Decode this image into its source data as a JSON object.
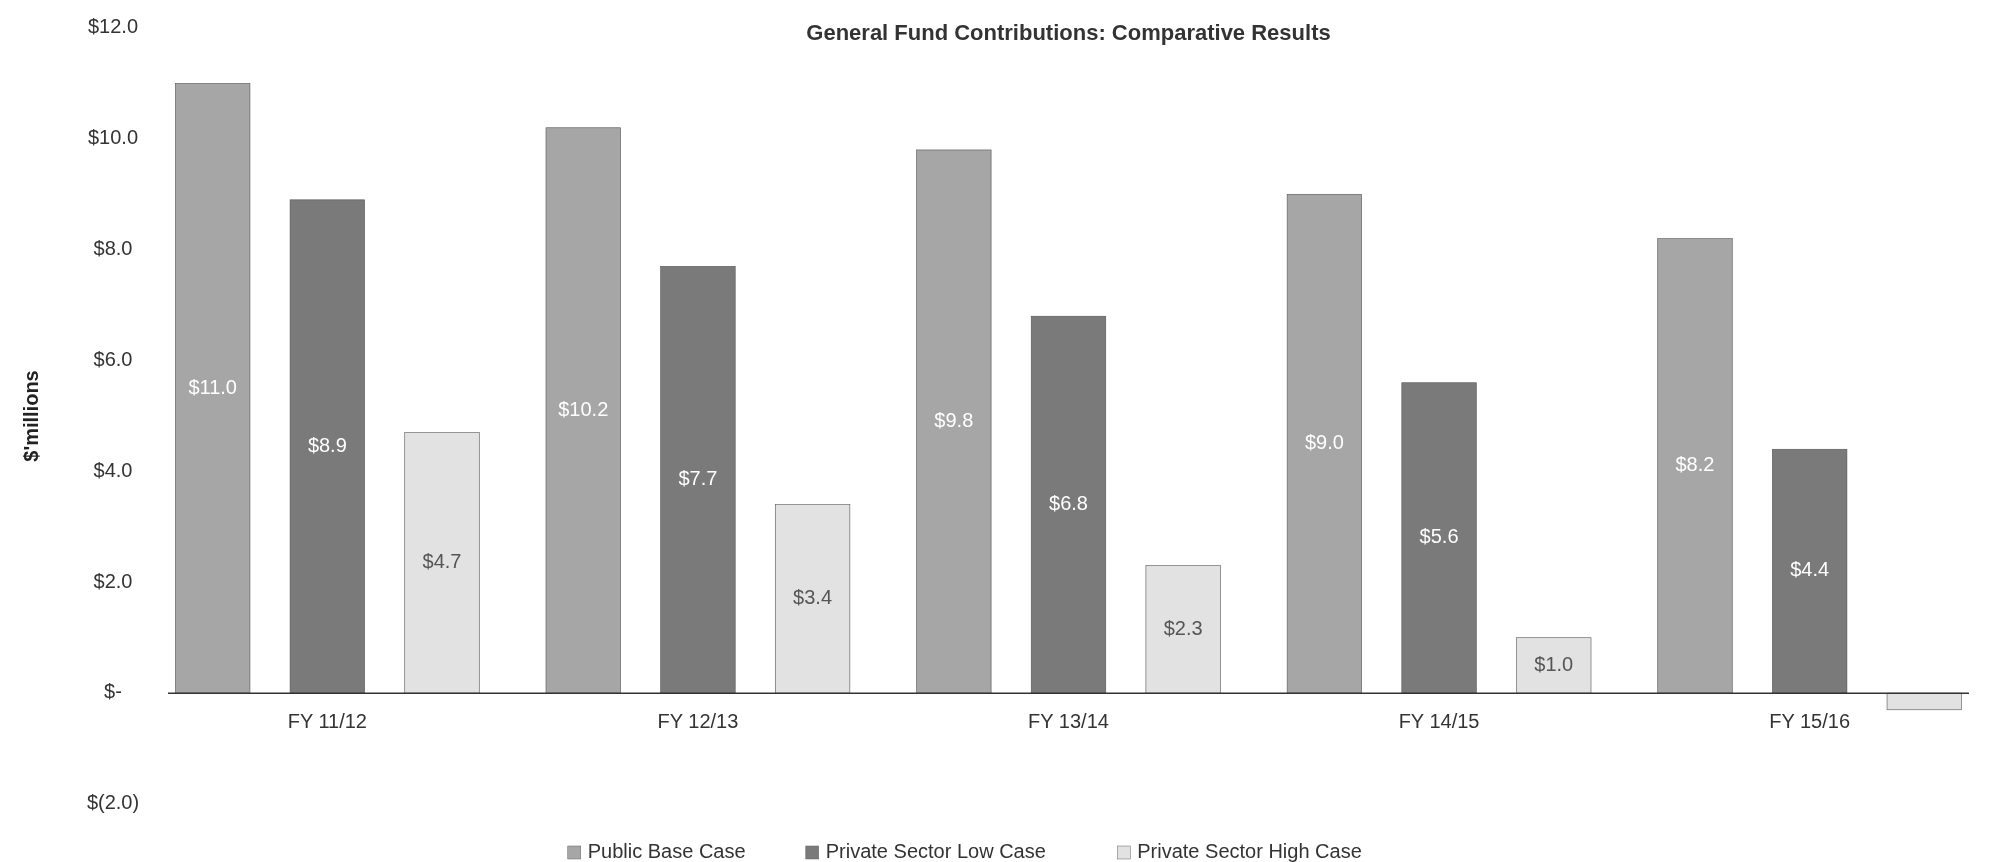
{
  "chart_data": {
    "type": "bar",
    "title": "General Fund Contributions: Comparative Results",
    "ylabel": "$'millions",
    "categories": [
      "FY 11/12",
      "FY 12/13",
      "FY 13/14",
      "FY 14/15",
      "FY 15/16"
    ],
    "series": [
      {
        "name": "Public Base Case",
        "color": "#a6a6a6",
        "values": [
          11.0,
          10.2,
          9.8,
          9.0,
          8.2
        ],
        "value_labels": [
          "$11.0",
          "$10.2",
          "$9.8",
          "$9.0",
          "$8.2"
        ]
      },
      {
        "name": "Private Sector Low Case",
        "color": "#7a7a7a",
        "values": [
          8.9,
          7.7,
          6.8,
          5.6,
          4.4
        ],
        "value_labels": [
          "$8.9",
          "$7.7",
          "$6.8",
          "$5.6",
          "$4.4"
        ]
      },
      {
        "name": "Private Sector High Case",
        "color": "#e2e2e2",
        "values": [
          4.7,
          3.4,
          2.3,
          1.0,
          -0.3
        ],
        "value_labels": [
          "$4.7",
          "$3.4",
          "$2.3",
          "$1.0",
          null
        ]
      }
    ],
    "ylim": [
      -2,
      12
    ],
    "yticks": [
      {
        "value": -2,
        "label": "$(2.0)"
      },
      {
        "value": 0,
        "label": "$-"
      },
      {
        "value": 2,
        "label": "$2.0"
      },
      {
        "value": 4,
        "label": "$4.0"
      },
      {
        "value": 6,
        "label": "$6.0"
      },
      {
        "value": 8,
        "label": "$8.0"
      },
      {
        "value": 10,
        "label": "$10.0"
      },
      {
        "value": 12,
        "label": "$12.0"
      }
    ],
    "grid": false,
    "legend": "bottom"
  }
}
